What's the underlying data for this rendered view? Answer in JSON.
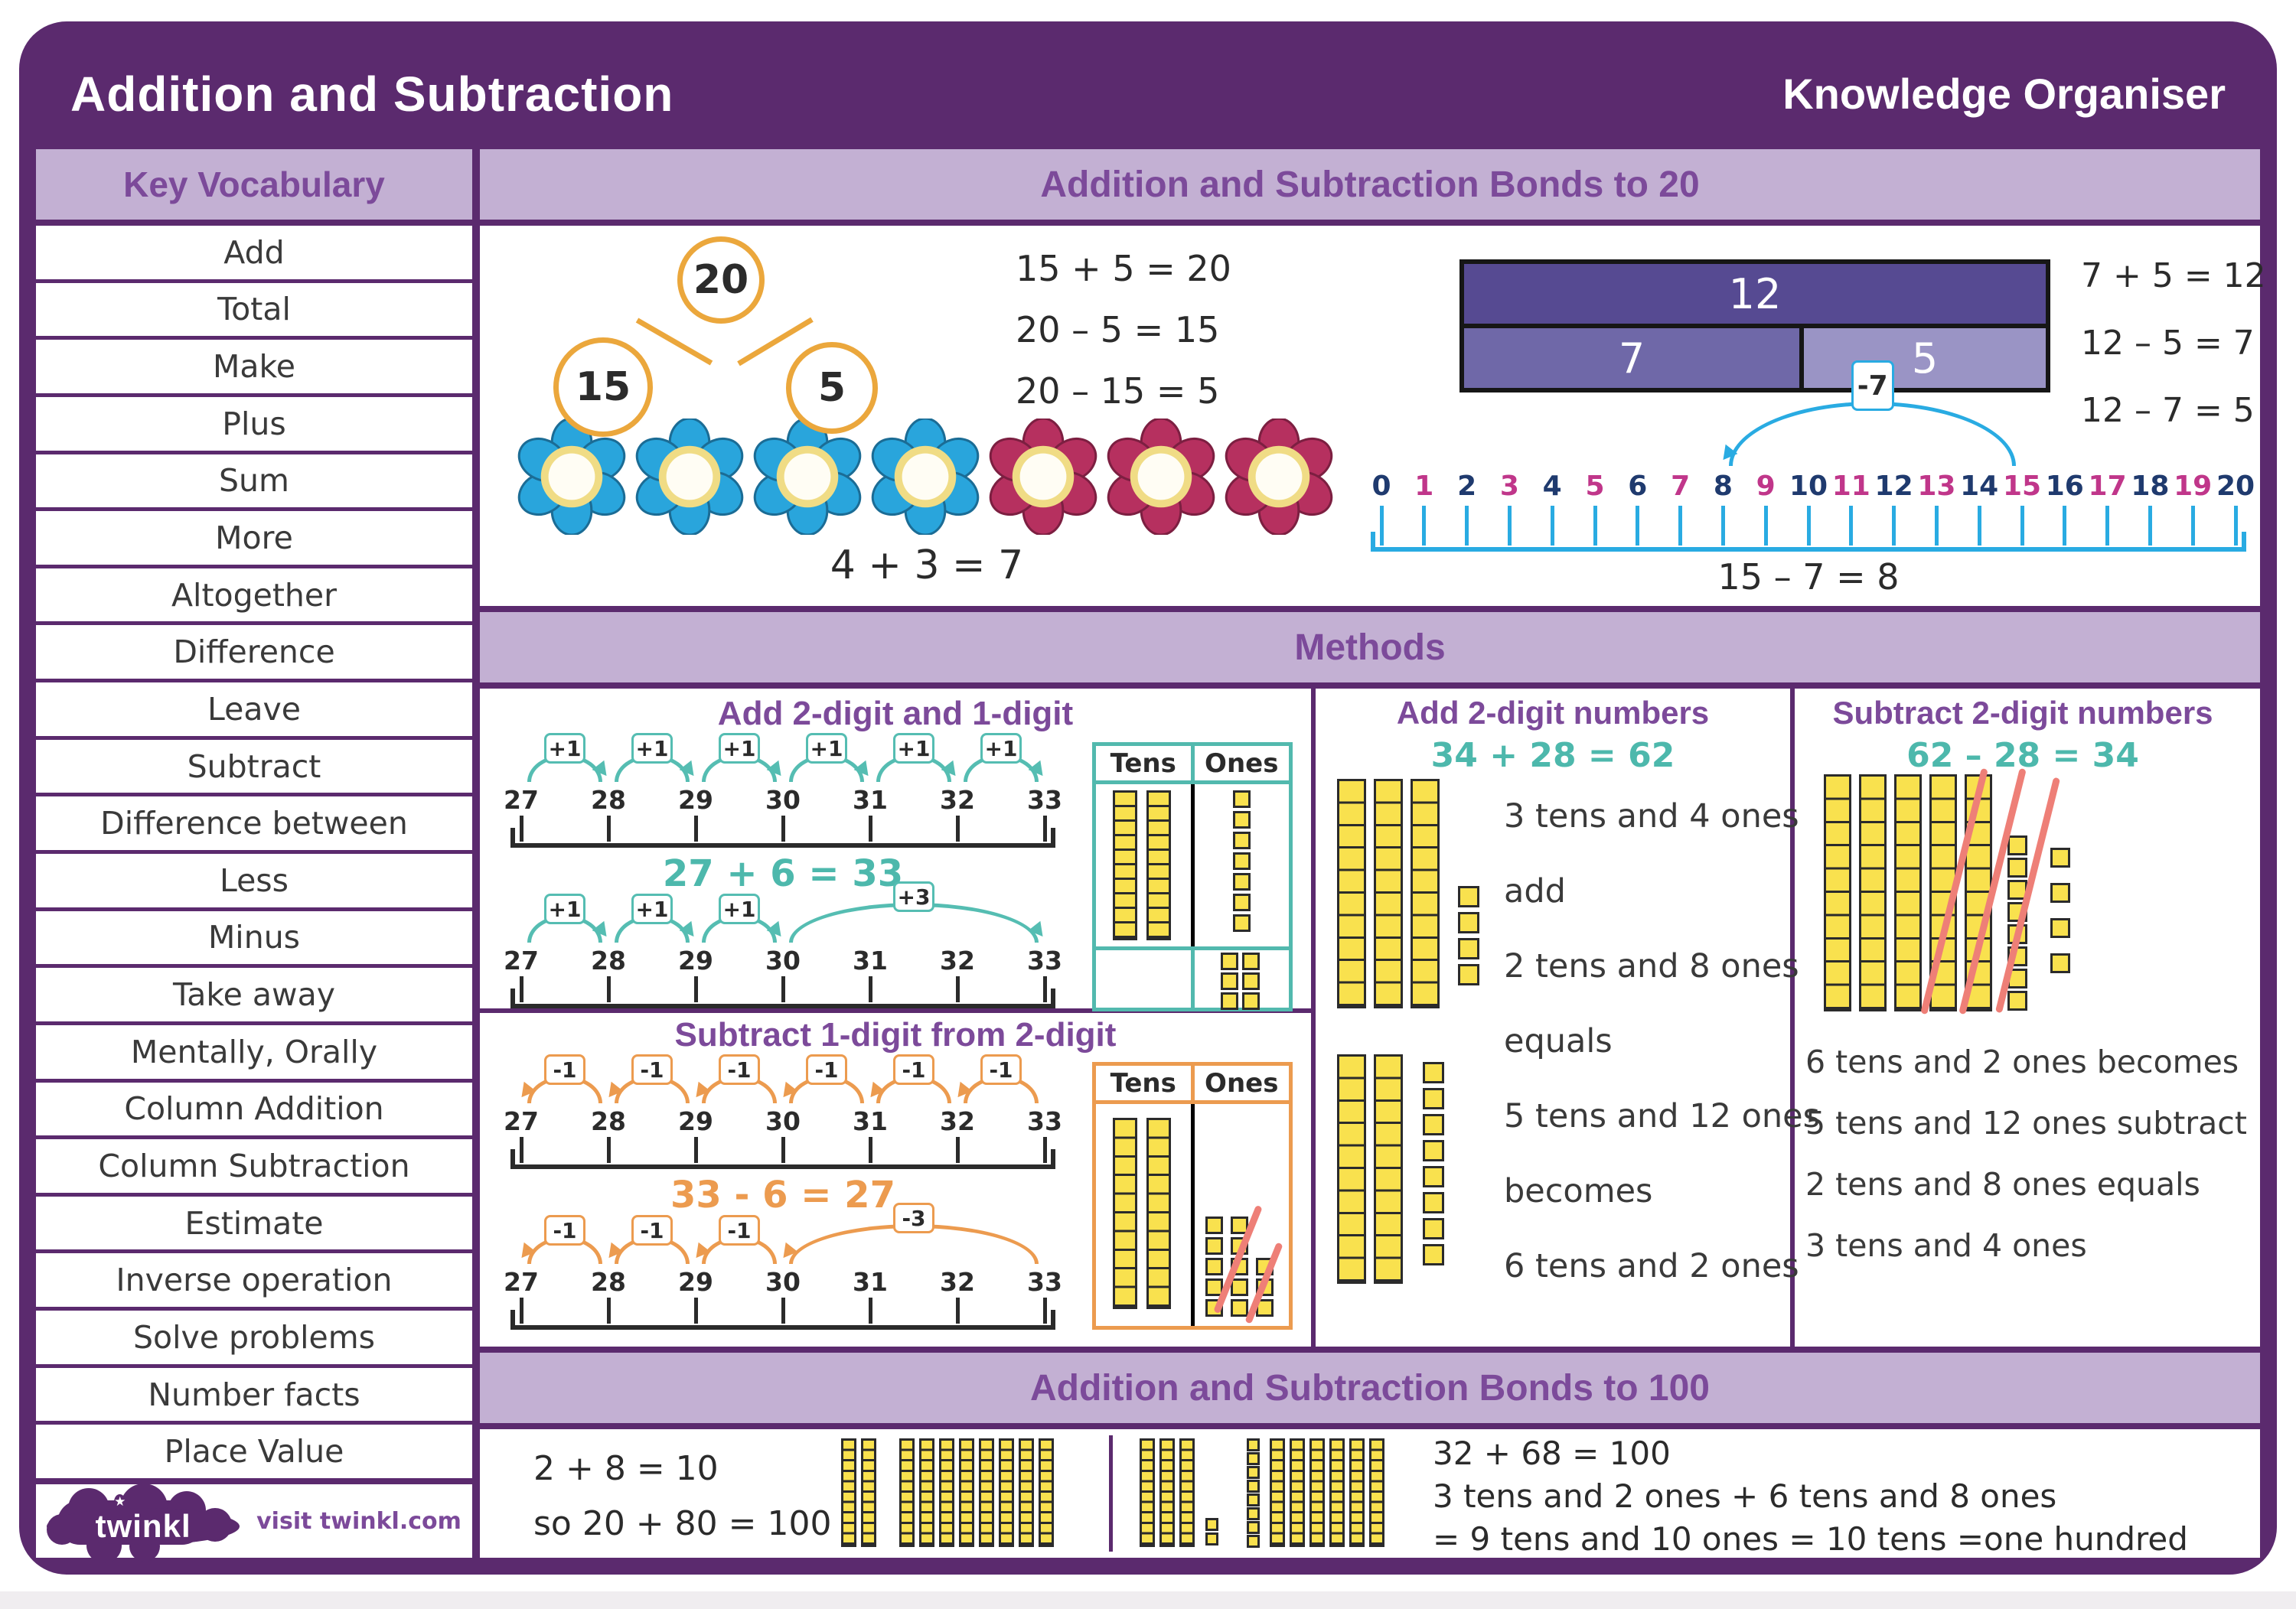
{
  "header": {
    "title": "Addition and Subtraction",
    "subtitle": "Knowledge Organiser"
  },
  "vocab": {
    "title": "Key Vocabulary",
    "items": [
      "Add",
      "Total",
      "Make",
      "Plus",
      "Sum",
      "More",
      "Altogether",
      "Difference",
      "Leave",
      "Subtract",
      "Difference between",
      "Less",
      "Minus",
      "Take away",
      "Mentally, Orally",
      "Column Addition",
      "Column Subtraction",
      "Estimate",
      "Inverse operation",
      "Solve problems",
      "Number facts",
      "Place Value"
    ]
  },
  "footer": {
    "logo_text": "twinkl",
    "visit_text": "visit twinkl.com"
  },
  "colors": {
    "frame_purple": "#5b2a6e",
    "band_lavender": "#c3b0d3",
    "band_text_purple": "#7c4a9a",
    "bond_orange": "#eba73c",
    "hop_teal": "#55bdb2",
    "hop_orange": "#ec9b4f",
    "numberline_cyan": "#29abe2",
    "number_navy": "#1f3a6e",
    "number_magenta": "#c0368a",
    "bar_dark": "#564a92",
    "bar_mid": "#6f68a8",
    "bar_light": "#9a94c5",
    "block_yellow": "#f9e14e",
    "cross_out_pink": "#ee7f77",
    "flower_blue": "#29a5dc",
    "flower_red": "#b6305f"
  },
  "bonds20": {
    "title": "Addition and Subtraction Bonds to 20",
    "number_bond": {
      "whole": "20",
      "part1": "15",
      "part2": "5"
    },
    "bond_equations": [
      "15 + 5 = 20",
      "20 – 5 = 15",
      "20 – 15 = 5"
    ],
    "bar_model": {
      "whole": "12",
      "part1": "7",
      "part2": "5"
    },
    "bar_equations": [
      "7 + 5 = 12",
      "12 – 5 = 7",
      "12 – 7 = 5"
    ],
    "flowers": {
      "blue": 4,
      "red": 3,
      "equation": "4 + 3 = 7"
    },
    "number_line": {
      "labels": [
        0,
        1,
        2,
        3,
        4,
        5,
        6,
        7,
        8,
        9,
        10,
        11,
        12,
        13,
        14,
        15,
        16,
        17,
        18,
        19,
        20
      ],
      "jump": {
        "from": 15,
        "to": 8,
        "label": "-7"
      },
      "equation": "15 – 7 = 8"
    }
  },
  "methods": {
    "title": "Methods",
    "add_1digit": {
      "title": "Add 2-digit and 1-digit",
      "equation": "27 + 6 = 33",
      "line1": {
        "labels": [
          27,
          28,
          29,
          30,
          31,
          32,
          33
        ],
        "hops": [
          {
            "from": 27,
            "to": 28,
            "label": "+1"
          },
          {
            "from": 28,
            "to": 29,
            "label": "+1"
          },
          {
            "from": 29,
            "to": 30,
            "label": "+1"
          },
          {
            "from": 30,
            "to": 31,
            "label": "+1"
          },
          {
            "from": 31,
            "to": 32,
            "label": "+1"
          },
          {
            "from": 32,
            "to": 33,
            "label": "+1"
          }
        ]
      },
      "line2": {
        "labels": [
          27,
          28,
          29,
          30,
          31,
          32,
          33
        ],
        "hops": [
          {
            "from": 27,
            "to": 28,
            "label": "+1"
          },
          {
            "from": 28,
            "to": 29,
            "label": "+1"
          },
          {
            "from": 29,
            "to": 30,
            "label": "+1"
          },
          {
            "from": 30,
            "to": 33,
            "label": "+3"
          }
        ]
      },
      "place_chart": {
        "tens_label": "Tens",
        "ones_label": "Ones",
        "tens_rods": 2,
        "ones_cubes": 7,
        "added_ones": 6
      }
    },
    "subtract_1digit": {
      "title": "Subtract 1-digit from 2-digit",
      "equation": "33 - 6 = 27",
      "line1": {
        "labels": [
          27,
          28,
          29,
          30,
          31,
          32,
          33
        ],
        "hops": [
          {
            "from": 28,
            "to": 27,
            "label": "-1"
          },
          {
            "from": 29,
            "to": 28,
            "label": "-1"
          },
          {
            "from": 30,
            "to": 29,
            "label": "-1"
          },
          {
            "from": 31,
            "to": 30,
            "label": "-1"
          },
          {
            "from": 32,
            "to": 31,
            "label": "-1"
          },
          {
            "from": 33,
            "to": 32,
            "label": "-1"
          }
        ]
      },
      "line2": {
        "labels": [
          27,
          28,
          29,
          30,
          31,
          32,
          33
        ],
        "hops": [
          {
            "from": 28,
            "to": 27,
            "label": "-1"
          },
          {
            "from": 29,
            "to": 28,
            "label": "-1"
          },
          {
            "from": 30,
            "to": 29,
            "label": "-1"
          },
          {
            "from": 33,
            "to": 30,
            "label": "-3"
          }
        ]
      },
      "place_chart": {
        "tens_label": "Tens",
        "ones_label": "Ones",
        "tens_rods": 2,
        "ones_columns": [
          5,
          5,
          3
        ],
        "cross_outs": 2
      }
    },
    "add_2digit": {
      "title": "Add 2-digit numbers",
      "equation": "34 + 28 = 62",
      "blocks": {
        "top_tens": 3,
        "top_ones": 4,
        "bottom_tens": 2,
        "bottom_ones": 8
      },
      "lines": [
        "3 tens and 4 ones",
        "add",
        "2 tens and 8 ones",
        "equals",
        "5 tens and 12 ones",
        "becomes",
        "6 tens and 2 ones"
      ]
    },
    "subtract_2digit": {
      "title": "Subtract 2-digit numbers",
      "equation": "62 – 28 = 34",
      "blocks": {
        "tens": 5,
        "ones_column": 8,
        "loose_ones": 4,
        "cross_outs": 3
      },
      "lines": [
        "6 tens and 2 ones becomes",
        "5 tens and 12 ones subtract",
        "2 tens and 8 ones equals",
        "3 tens and 4 ones"
      ]
    }
  },
  "bonds100": {
    "title": "Addition and Subtraction Bonds to 100",
    "left_lines": [
      "2 + 8 = 10",
      "so 20 + 80 = 100"
    ],
    "blocks_left": {
      "tens_first": 2,
      "tens_second": 8
    },
    "blocks_right": {
      "tens_a": 3,
      "ones_a": 2,
      "ones_b": 8,
      "tens_b": 6
    },
    "right_lines": [
      "32 + 68 = 100",
      "3 tens and 2 ones + 6 tens and 8 ones",
      "= 9 tens and 10 ones = 10 tens =one hundred"
    ]
  }
}
